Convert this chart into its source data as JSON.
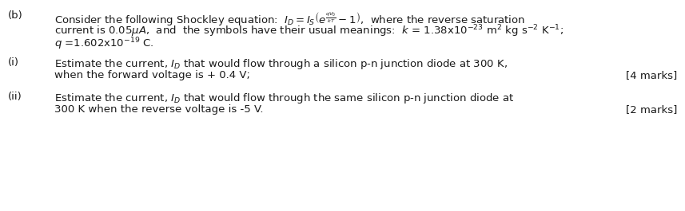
{
  "background_color": "#ffffff",
  "figsize": [
    8.57,
    2.65
  ],
  "dpi": 100,
  "label_b": "(b)",
  "label_i": "(i)",
  "label_ii": "(ii)",
  "line_b1_plain": "Consider the following Shockley equation:  ",
  "line_b1_math": "$I_D = I_S\\left(e^{\\frac{qV_0}{kT}} - 1\\right)$,  where the reverse saturation",
  "line_b2": "current is 0.05$\\mu$$A$,  and  the symbols have their usual meanings:  $k$ = 1.38x10$^{-23}$ m$^2$ kg s$^{-2}$ K$^{-1}$;",
  "line_b3": "$q$ =1.602x10$^{-19}$ C.",
  "line_i1": "Estimate the current, $I_D$ that would flow through a silicon p-n junction diode at 300 K,",
  "line_i2": "when the forward voltage is + 0.4 V;",
  "marks_i": "[4 marks]",
  "line_ii1": "Estimate the current, $I_D$ that would flow through the same silicon p-n junction diode at",
  "line_ii2": "300 K when the reverse voltage is -5 V.",
  "marks_ii": "[2 marks]",
  "font_size": 9.5,
  "text_color": "#1a1a1a"
}
